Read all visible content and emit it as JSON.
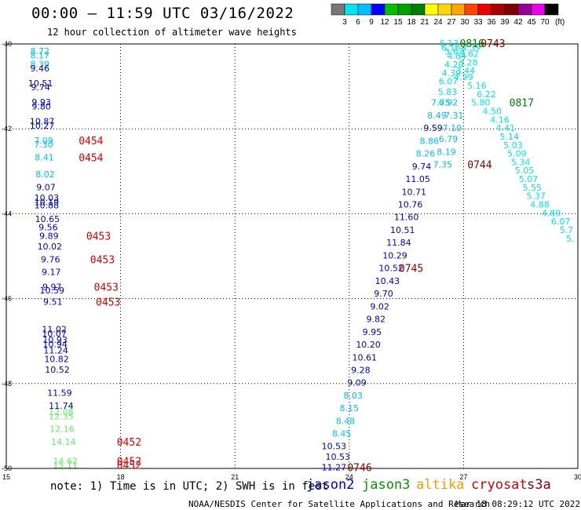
{
  "title": "00:00 – 11:59 UTC 03/16/2022",
  "subtitle": "12 hour collection of altimeter wave heights",
  "note": "note:  1) Time is in UTC; 2) SWH is in feet",
  "satellites": [
    {
      "name": "jason2",
      "color": "#0000cc"
    },
    {
      "name": "jason3",
      "color": "#009900"
    },
    {
      "name": "altika",
      "color": "#ff9900"
    },
    {
      "name": "cryosat",
      "color": "#dd0000"
    },
    {
      "name": "s3a",
      "color": "#880000"
    }
  ],
  "footer_credit": "NOAA/NESDIS Center for Satellite Applications and Research",
  "footer_time": "Mar 18 08:29:12 UTC 2022",
  "colorbar": {
    "unit": "(ft)",
    "ticks": [
      "3",
      "6",
      "9",
      "12",
      "15",
      "18",
      "21",
      "24",
      "27",
      "30",
      "33",
      "36",
      "39",
      "42",
      "45",
      "70"
    ],
    "colors": [
      "#777777",
      "#00e5ee",
      "#00bfff",
      "#0000ff",
      "#00c000",
      "#00a000",
      "#008000",
      "#ffff00",
      "#ffd700",
      "#ffa500",
      "#ff4500",
      "#ee0000",
      "#aa0000",
      "#800000",
      "#990099",
      "#ee00ee",
      "#000000"
    ]
  },
  "chart_data": {
    "type": "scatter",
    "xlim": [
      15,
      30
    ],
    "ylim": [
      -50,
      -40
    ],
    "xticks": [
      "15",
      "18",
      "21",
      "24",
      "27",
      "30"
    ],
    "yticks": [
      "-40",
      "-42",
      "-44",
      "-46",
      "-48",
      "-50"
    ],
    "grid": true,
    "swh_points": [
      {
        "x": 15.88,
        "y": -40.17,
        "v": "8.72",
        "c": "#00bfff"
      },
      {
        "x": 15.88,
        "y": -40.27,
        "v": "8.17",
        "c": "#00bfff"
      },
      {
        "x": 15.88,
        "y": -40.47,
        "v": "8.39",
        "c": "#00bfff"
      },
      {
        "x": 15.88,
        "y": -40.57,
        "v": "9.46",
        "c": "#0000cc"
      },
      {
        "x": 15.9,
        "y": -40.92,
        "v": "10.51",
        "c": "#0000cc"
      },
      {
        "x": 15.9,
        "y": -41.02,
        "v": "9.74",
        "c": "#0000cc"
      },
      {
        "x": 15.92,
        "y": -41.37,
        "v": "9.93",
        "c": "#0000cc"
      },
      {
        "x": 15.92,
        "y": -41.47,
        "v": "9.80",
        "c": "#0000cc"
      },
      {
        "x": 15.94,
        "y": -41.82,
        "v": "10.87",
        "c": "#0000cc"
      },
      {
        "x": 15.94,
        "y": -41.92,
        "v": "10.27",
        "c": "#0000cc"
      },
      {
        "x": 15.98,
        "y": -42.27,
        "v": "7.09",
        "c": "#00bfff"
      },
      {
        "x": 15.98,
        "y": -42.37,
        "v": "7.30",
        "c": "#00bfff"
      },
      {
        "x": 16.0,
        "y": -42.67,
        "v": "8.41",
        "c": "#00bfff"
      },
      {
        "x": 16.02,
        "y": -43.07,
        "v": "8.02",
        "c": "#00bfff"
      },
      {
        "x": 16.04,
        "y": -43.37,
        "v": "9.07",
        "c": "#0000cc"
      },
      {
        "x": 16.06,
        "y": -43.62,
        "v": "10.03",
        "c": "#0000cc"
      },
      {
        "x": 16.06,
        "y": -43.72,
        "v": "10.19",
        "c": "#0000cc"
      },
      {
        "x": 16.06,
        "y": -43.8,
        "v": "10.88",
        "c": "#0000cc"
      },
      {
        "x": 16.08,
        "y": -44.12,
        "v": "10.65",
        "c": "#0000cc"
      },
      {
        "x": 16.1,
        "y": -44.32,
        "v": "9.56",
        "c": "#0000cc"
      },
      {
        "x": 16.12,
        "y": -44.52,
        "v": "9.89",
        "c": "#0000cc"
      },
      {
        "x": 16.14,
        "y": -44.77,
        "v": "10.02",
        "c": "#0000cc"
      },
      {
        "x": 16.16,
        "y": -45.07,
        "v": "9.76",
        "c": "#0000cc"
      },
      {
        "x": 16.18,
        "y": -45.37,
        "v": "9.17",
        "c": "#0000cc"
      },
      {
        "x": 16.2,
        "y": -45.72,
        "v": "9.97",
        "c": "#0000cc"
      },
      {
        "x": 16.2,
        "y": -45.8,
        "v": "10.59",
        "c": "#0000cc"
      },
      {
        "x": 16.22,
        "y": -46.07,
        "v": "9.51",
        "c": "#0000cc"
      },
      {
        "x": 16.26,
        "y": -46.72,
        "v": "11.02",
        "c": "#0000cc"
      },
      {
        "x": 16.26,
        "y": -46.82,
        "v": "10.07",
        "c": "#0000cc"
      },
      {
        "x": 16.28,
        "y": -46.97,
        "v": "10.93",
        "c": "#0000cc"
      },
      {
        "x": 16.28,
        "y": -47.07,
        "v": "10.94",
        "c": "#0000cc"
      },
      {
        "x": 16.3,
        "y": -47.22,
        "v": "11.24",
        "c": "#0000cc"
      },
      {
        "x": 16.32,
        "y": -47.42,
        "v": "10.82",
        "c": "#0000cc"
      },
      {
        "x": 16.34,
        "y": -47.67,
        "v": "10.52",
        "c": "#0000cc"
      },
      {
        "x": 16.4,
        "y": -48.22,
        "v": "11.59",
        "c": "#0000cc"
      },
      {
        "x": 16.44,
        "y": -48.52,
        "v": "11.74",
        "c": "#0000cc"
      },
      {
        "x": 16.44,
        "y": -48.67,
        "v": "12.08",
        "c": "#66ee66"
      },
      {
        "x": 16.44,
        "y": -48.77,
        "v": "12.35",
        "c": "#66ee66"
      },
      {
        "x": 16.46,
        "y": -49.07,
        "v": "12.16",
        "c": "#66ee66"
      },
      {
        "x": 16.5,
        "y": -49.37,
        "v": "14.14",
        "c": "#66ee66"
      },
      {
        "x": 16.55,
        "y": -49.82,
        "v": "14.62",
        "c": "#66ee66"
      },
      {
        "x": 16.55,
        "y": -49.92,
        "v": "15.11",
        "c": "#66ee66"
      },
      {
        "x": 23.7,
        "y": -49.72,
        "v": "10.53",
        "c": "#0000cc"
      },
      {
        "x": 23.6,
        "y": -49.97,
        "v": "11.27",
        "c": "#0000cc"
      },
      {
        "x": 23.6,
        "y": -49.47,
        "v": "10.53",
        "c": "#0000cc"
      },
      {
        "x": 23.8,
        "y": -49.18,
        "v": "8.45",
        "c": "#00bfff"
      },
      {
        "x": 23.9,
        "y": -48.88,
        "v": "8.48",
        "c": "#00bfff"
      },
      {
        "x": 24.0,
        "y": -48.58,
        "v": "8.15",
        "c": "#00bfff"
      },
      {
        "x": 24.1,
        "y": -48.28,
        "v": "8.03",
        "c": "#00bfff"
      },
      {
        "x": 24.2,
        "y": -47.98,
        "v": "9.09",
        "c": "#0000cc"
      },
      {
        "x": 24.3,
        "y": -47.68,
        "v": "9.28",
        "c": "#0000cc"
      },
      {
        "x": 24.4,
        "y": -47.38,
        "v": "10.61",
        "c": "#0000cc"
      },
      {
        "x": 24.5,
        "y": -47.08,
        "v": "10.20",
        "c": "#0000cc"
      },
      {
        "x": 24.6,
        "y": -46.78,
        "v": "9.95",
        "c": "#0000cc"
      },
      {
        "x": 24.7,
        "y": -46.48,
        "v": "9.82",
        "c": "#0000cc"
      },
      {
        "x": 24.8,
        "y": -46.18,
        "v": "9.02",
        "c": "#0000cc"
      },
      {
        "x": 24.9,
        "y": -45.88,
        "v": "9.70",
        "c": "#0000cc"
      },
      {
        "x": 25.0,
        "y": -45.58,
        "v": "10.43",
        "c": "#0000cc"
      },
      {
        "x": 25.1,
        "y": -45.28,
        "v": "10.52",
        "c": "#0000cc"
      },
      {
        "x": 25.2,
        "y": -44.98,
        "v": "10.29",
        "c": "#0000cc"
      },
      {
        "x": 25.3,
        "y": -44.68,
        "v": "11.84",
        "c": "#0000cc"
      },
      {
        "x": 25.4,
        "y": -44.38,
        "v": "10.51",
        "c": "#0000cc"
      },
      {
        "x": 25.5,
        "y": -44.08,
        "v": "11.60",
        "c": "#0000cc"
      },
      {
        "x": 25.6,
        "y": -43.78,
        "v": "10.76",
        "c": "#0000cc"
      },
      {
        "x": 25.7,
        "y": -43.48,
        "v": "10.71",
        "c": "#0000cc"
      },
      {
        "x": 25.8,
        "y": -43.18,
        "v": "11.05",
        "c": "#0000cc"
      },
      {
        "x": 25.9,
        "y": -42.88,
        "v": "9.74",
        "c": "#0000cc"
      },
      {
        "x": 26.0,
        "y": -42.58,
        "v": "8.26",
        "c": "#00bfff"
      },
      {
        "x": 26.1,
        "y": -42.28,
        "v": "8.86",
        "c": "#00bfff"
      },
      {
        "x": 26.2,
        "y": -41.98,
        "v": "9.59",
        "c": "#0000cc"
      },
      {
        "x": 26.3,
        "y": -41.68,
        "v": "8.49",
        "c": "#00bfff"
      },
      {
        "x": 26.4,
        "y": -41.38,
        "v": "7.75",
        "c": "#00bfff"
      },
      {
        "x": 26.45,
        "y": -42.84,
        "v": "7.35",
        "c": "#00bfff"
      },
      {
        "x": 26.55,
        "y": -42.54,
        "v": "8.19",
        "c": "#00bfff"
      },
      {
        "x": 26.6,
        "y": -42.24,
        "v": "6.79",
        "c": "#00bfff"
      },
      {
        "x": 26.7,
        "y": -41.98,
        "v": "7.10",
        "c": "#00bfff"
      },
      {
        "x": 26.75,
        "y": -41.68,
        "v": "7.31",
        "c": "#00bfff"
      },
      {
        "x": 26.6,
        "y": -41.38,
        "v": "6.92",
        "c": "#00bfff"
      },
      {
        "x": 26.58,
        "y": -41.13,
        "v": "5.83",
        "c": "#00e5ee"
      },
      {
        "x": 26.6,
        "y": -40.88,
        "v": "6.07",
        "c": "#00e5ee"
      },
      {
        "x": 26.68,
        "y": -40.68,
        "v": "4.39",
        "c": "#00e5ee"
      },
      {
        "x": 26.75,
        "y": -40.48,
        "v": "4.20",
        "c": "#00e5ee"
      },
      {
        "x": 26.82,
        "y": -40.28,
        "v": "4.84",
        "c": "#00e5ee"
      },
      {
        "x": 26.76,
        "y": -40.18,
        "v": "5.67",
        "c": "#00e5ee"
      },
      {
        "x": 26.67,
        "y": -40.08,
        "v": "6.16",
        "c": "#00e5ee"
      },
      {
        "x": 26.62,
        "y": -39.98,
        "v": "6.13",
        "c": "#00e5ee"
      },
      {
        "x": 27.2,
        "y": -40.08,
        "v": "4.39",
        "c": "#00e5ee"
      },
      {
        "x": 27.15,
        "y": -40.23,
        "v": "3.62",
        "c": "#00e5ee"
      },
      {
        "x": 27.12,
        "y": -40.43,
        "v": "3.28",
        "c": "#00e5ee"
      },
      {
        "x": 27.05,
        "y": -40.63,
        "v": "3.44",
        "c": "#00e5ee"
      },
      {
        "x": 27.0,
        "y": -40.78,
        "v": "4.99",
        "c": "#00e5ee"
      },
      {
        "x": 27.35,
        "y": -40.98,
        "v": "5.16",
        "c": "#00e5ee"
      },
      {
        "x": 27.6,
        "y": -41.18,
        "v": "6.22",
        "c": "#00e5ee"
      },
      {
        "x": 27.45,
        "y": -41.38,
        "v": "5.80",
        "c": "#00e5ee"
      },
      {
        "x": 27.75,
        "y": -41.58,
        "v": "4.50",
        "c": "#00e5ee"
      },
      {
        "x": 27.95,
        "y": -41.78,
        "v": "4.16",
        "c": "#00e5ee"
      },
      {
        "x": 28.1,
        "y": -41.98,
        "v": "4.41",
        "c": "#00e5ee"
      },
      {
        "x": 28.2,
        "y": -42.18,
        "v": "5.14",
        "c": "#00e5ee"
      },
      {
        "x": 28.3,
        "y": -42.38,
        "v": "5.03",
        "c": "#00e5ee"
      },
      {
        "x": 28.4,
        "y": -42.58,
        "v": "5.09",
        "c": "#00e5ee"
      },
      {
        "x": 28.5,
        "y": -42.78,
        "v": "5.34",
        "c": "#00e5ee"
      },
      {
        "x": 28.6,
        "y": -42.98,
        "v": "5.05",
        "c": "#00e5ee"
      },
      {
        "x": 28.7,
        "y": -43.18,
        "v": "5.07",
        "c": "#00e5ee"
      },
      {
        "x": 28.8,
        "y": -43.38,
        "v": "5.55",
        "c": "#00e5ee"
      },
      {
        "x": 28.9,
        "y": -43.58,
        "v": "5.37",
        "c": "#00e5ee"
      },
      {
        "x": 29.0,
        "y": -43.78,
        "v": "4.88",
        "c": "#00e5ee"
      },
      {
        "x": 29.3,
        "y": -43.98,
        "v": "4.89",
        "c": "#00e5ee"
      },
      {
        "x": 29.55,
        "y": -44.18,
        "v": "6.07",
        "c": "#00e5ee"
      },
      {
        "x": 29.7,
        "y": -44.38,
        "v": "5.7",
        "c": "#00e5ee"
      },
      {
        "x": 29.8,
        "y": -44.58,
        "v": "5.",
        "c": "#00e5ee"
      }
    ],
    "pass_times": [
      {
        "x": 16.9,
        "y": -42.27,
        "t": "0454",
        "c": "#dd0000"
      },
      {
        "x": 16.9,
        "y": -42.67,
        "t": "0454",
        "c": "#dd0000"
      },
      {
        "x": 17.1,
        "y": -44.52,
        "t": "0453",
        "c": "#dd0000"
      },
      {
        "x": 17.2,
        "y": -45.07,
        "t": "0453",
        "c": "#dd0000"
      },
      {
        "x": 17.3,
        "y": -45.72,
        "t": "0453",
        "c": "#dd0000"
      },
      {
        "x": 17.35,
        "y": -46.07,
        "t": "0453",
        "c": "#dd0000"
      },
      {
        "x": 17.9,
        "y": -49.37,
        "t": "0452",
        "c": "#dd0000"
      },
      {
        "x": 17.9,
        "y": -49.82,
        "t": "0452",
        "c": "#dd0000"
      },
      {
        "x": 17.9,
        "y": -49.92,
        "t": "0452",
        "c": "#dd0000"
      },
      {
        "x": 23.95,
        "y": -49.97,
        "t": "0746",
        "c": "#880000"
      },
      {
        "x": 25.3,
        "y": -45.28,
        "t": "0745",
        "c": "#880000"
      },
      {
        "x": 27.1,
        "y": -42.84,
        "t": "0744",
        "c": "#880000"
      },
      {
        "x": 27.45,
        "y": -39.98,
        "t": "0743",
        "c": "#880000"
      },
      {
        "x": 26.9,
        "y": -39.98,
        "t": "0816",
        "c": "#008000"
      },
      {
        "x": 28.2,
        "y": -41.38,
        "t": "0817",
        "c": "#008000"
      }
    ]
  }
}
